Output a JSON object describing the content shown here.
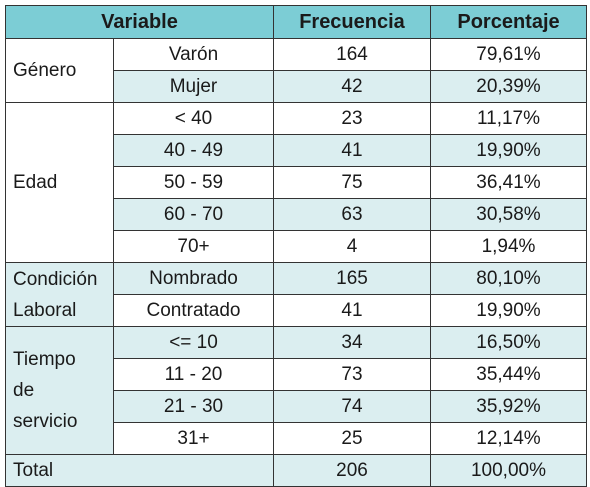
{
  "headers": [
    "Variable",
    "Frecuencia",
    "Porcentaje"
  ],
  "groups": {
    "genero": "Género",
    "edad": "Edad",
    "condicion_1": "Condición",
    "condicion_2": "Laboral",
    "tiempo_1": "Tiempo",
    "tiempo_2": "de",
    "tiempo_3": "servicio"
  },
  "rows": [
    {
      "cat": "Varón",
      "freq": "164",
      "pct": "79,61%"
    },
    {
      "cat": "Mujer",
      "freq": "42",
      "pct": "20,39%"
    },
    {
      "cat": "< 40",
      "freq": "23",
      "pct": "11,17%"
    },
    {
      "cat": "40 - 49",
      "freq": "41",
      "pct": "19,90%"
    },
    {
      "cat": "50 - 59",
      "freq": "75",
      "pct": "36,41%"
    },
    {
      "cat": "60 - 70",
      "freq": "63",
      "pct": "30,58%"
    },
    {
      "cat": "70+",
      "freq": "4",
      "pct": "1,94%"
    },
    {
      "cat": "Nombrado",
      "freq": "165",
      "pct": "80,10%"
    },
    {
      "cat": "Contratado",
      "freq": "41",
      "pct": "19,90%"
    },
    {
      "cat": "<= 10",
      "freq": "34",
      "pct": "16,50%"
    },
    {
      "cat": "11 - 20",
      "freq": "73",
      "pct": "35,44%"
    },
    {
      "cat": "21 - 30",
      "freq": "74",
      "pct": "35,92%"
    },
    {
      "cat": "31+",
      "freq": "25",
      "pct": "12,14%"
    }
  ],
  "total": {
    "label": "Total",
    "freq": "206",
    "pct": "100,00%"
  }
}
